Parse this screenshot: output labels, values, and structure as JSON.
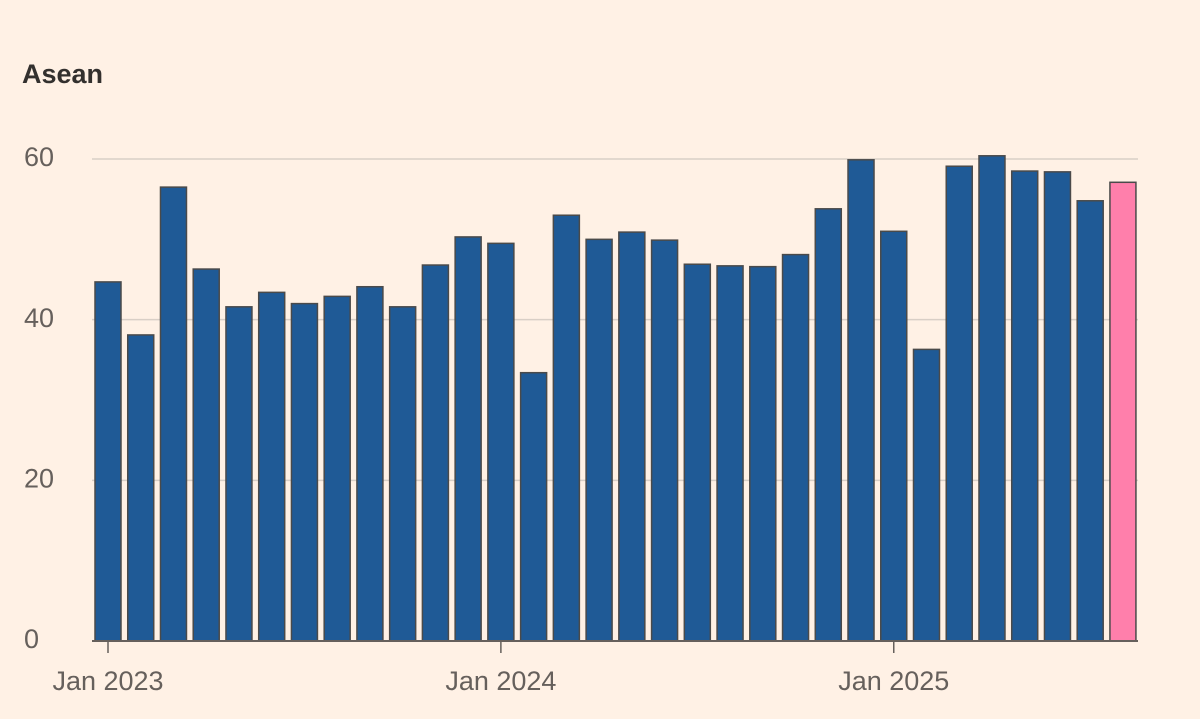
{
  "chart_data": {
    "type": "bar",
    "title": "Asean",
    "categories": [
      "Jan 2023",
      null,
      null,
      null,
      null,
      null,
      null,
      null,
      null,
      null,
      null,
      null,
      "Jan 2024",
      null,
      null,
      null,
      null,
      null,
      null,
      null,
      null,
      null,
      null,
      null,
      "Jan 2025",
      null,
      null,
      null,
      null,
      null,
      null,
      null
    ],
    "values": [
      44.7,
      38.1,
      56.5,
      46.3,
      41.6,
      43.4,
      42.0,
      42.9,
      44.1,
      41.6,
      46.8,
      50.3,
      49.5,
      33.4,
      53.0,
      50.0,
      50.9,
      49.9,
      46.9,
      46.7,
      46.6,
      48.1,
      53.8,
      59.9,
      51.0,
      36.3,
      59.1,
      60.4,
      58.5,
      58.4,
      54.8,
      57.1
    ],
    "colors": [
      "#1f5a96",
      "#1f5a96",
      "#1f5a96",
      "#1f5a96",
      "#1f5a96",
      "#1f5a96",
      "#1f5a96",
      "#1f5a96",
      "#1f5a96",
      "#1f5a96",
      "#1f5a96",
      "#1f5a96",
      "#1f5a96",
      "#1f5a96",
      "#1f5a96",
      "#1f5a96",
      "#1f5a96",
      "#1f5a96",
      "#1f5a96",
      "#1f5a96",
      "#1f5a96",
      "#1f5a96",
      "#1f5a96",
      "#1f5a96",
      "#1f5a96",
      "#1f5a96",
      "#1f5a96",
      "#1f5a96",
      "#1f5a96",
      "#1f5a96",
      "#1f5a96",
      "#ff7fab"
    ],
    "ylim": [
      0,
      60
    ],
    "yticks": [
      0,
      20,
      40,
      60
    ],
    "grid": true
  }
}
